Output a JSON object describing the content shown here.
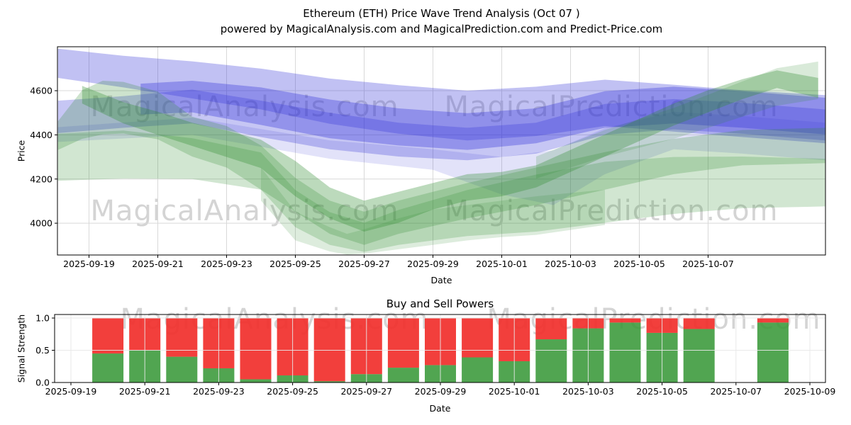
{
  "figure": {
    "title_line1": "Ethereum (ETH) Price Wave Trend Analysis (Oct 07 )",
    "title_line2": "powered by MagicalAnalysis.com and MagicalPrediction.com and Predict-Price.com",
    "watermark_left": "MagicalAnalysis.com",
    "watermark_right": "MagicalPrediction.com",
    "colors": {
      "band_blue": "#3232d8",
      "band_green": "#2e8b2e",
      "bar_buy_green": "#399939",
      "bar_sell_red": "#f12f2b",
      "grid": "#d9d9d9",
      "grid_over_bars": "#e8e8e8",
      "spine": "#000000",
      "watermark": "#a5a5a5"
    }
  },
  "chart_data": [
    {
      "type": "area",
      "title": "",
      "xlabel": "Date",
      "ylabel": "Price",
      "x_ticks": [
        "2025-09-19",
        "2025-09-21",
        "2025-09-23",
        "2025-09-25",
        "2025-09-27",
        "2025-09-29",
        "2025-10-01",
        "2025-10-03",
        "2025-10-05",
        "2025-10-07"
      ],
      "y_ticks": [
        4000,
        4200,
        4400,
        4600
      ],
      "ylim": [
        3856,
        4799
      ],
      "x_unit": "days since 2025-09-18",
      "xlim_days": [
        0.1,
        22.4
      ],
      "grid": true,
      "bands": {
        "blue": [
          {
            "name": "blue-wide-upper",
            "opacity": 0.3,
            "points": [
              [
                0.1,
                4790,
                4658
              ],
              [
                2,
                4758,
                4615
              ],
              [
                4,
                4733,
                4565
              ],
              [
                6,
                4700,
                4515
              ],
              [
                8,
                4655,
                4450
              ],
              [
                10,
                4625,
                4405
              ],
              [
                12,
                4600,
                4375
              ],
              [
                14,
                4618,
                4395
              ],
              [
                16,
                4650,
                4440
              ],
              [
                18,
                4627,
                4415
              ],
              [
                20,
                4602,
                4390
              ],
              [
                22.4,
                4580,
                4362
              ]
            ]
          },
          {
            "name": "blue-mid",
            "opacity": 0.28,
            "points": [
              [
                0.1,
                4555,
                4408
              ],
              [
                2,
                4575,
                4432
              ],
              [
                4,
                4605,
                4452
              ],
              [
                6,
                4555,
                4390
              ],
              [
                8,
                4500,
                4335
              ],
              [
                10,
                4455,
                4302
              ],
              [
                12,
                4432,
                4285
              ],
              [
                14,
                4455,
                4315
              ],
              [
                16,
                4540,
                4400
              ],
              [
                18,
                4562,
                4425
              ],
              [
                20,
                4545,
                4405
              ],
              [
                22.4,
                4515,
                4375
              ]
            ]
          },
          {
            "name": "blue-core-dark",
            "opacity": 0.34,
            "points": [
              [
                2.5,
                4632,
                4492
              ],
              [
                4,
                4645,
                4502
              ],
              [
                6,
                4615,
                4445
              ],
              [
                8,
                4560,
                4385
              ],
              [
                10,
                4520,
                4352
              ],
              [
                12,
                4498,
                4332
              ],
              [
                14,
                4520,
                4362
              ],
              [
                16,
                4598,
                4432
              ],
              [
                18,
                4618,
                4452
              ],
              [
                20,
                4598,
                4432
              ],
              [
                22.4,
                4568,
                4402
              ]
            ]
          },
          {
            "name": "blue-faint-lower",
            "opacity": 0.14,
            "points": [
              [
                0.1,
                4435,
                4368
              ],
              [
                4,
                4478,
                4400
              ],
              [
                8,
                4375,
                4292
              ],
              [
                11,
                4335,
                4242
              ],
              [
                13,
                4300,
                4130
              ],
              [
                14.5,
                4330,
                4082
              ],
              [
                16,
                4430,
                4222
              ],
              [
                18,
                4505,
                4335
              ],
              [
                20,
                4485,
                4315
              ],
              [
                22.4,
                4455,
                4285
              ]
            ]
          }
        ],
        "green": [
          {
            "name": "green-wide-fan",
            "opacity": 0.22,
            "points": [
              [
                0.1,
                4405,
                4192
              ],
              [
                2,
                4420,
                4202
              ],
              [
                4,
                4385,
                4200
              ],
              [
                6,
                4320,
                4152
              ],
              [
                7,
                4150,
                3982
              ],
              [
                8,
                4050,
                3902
              ],
              [
                9,
                4002,
                3870
              ],
              [
                10,
                4060,
                3902
              ],
              [
                12,
                4150,
                3942
              ],
              [
                14,
                4220,
                3962
              ],
              [
                16,
                4278,
                4002
              ],
              [
                18,
                4300,
                4042
              ],
              [
                20,
                4302,
                4068
              ],
              [
                22.4,
                4292,
                4076
              ]
            ]
          },
          {
            "name": "green-mid",
            "opacity": 0.24,
            "points": [
              [
                0.1,
                4462,
                4332
              ],
              [
                0.8,
                4602,
                4382
              ],
              [
                1.4,
                4645,
                4402
              ],
              [
                2,
                4640,
                4406
              ],
              [
                3,
                4596,
                4380
              ],
              [
                4,
                4482,
                4302
              ],
              [
                5,
                4440,
                4252
              ],
              [
                6,
                4352,
                4152
              ],
              [
                7,
                4205,
                4052
              ],
              [
                8,
                4102,
                3952
              ],
              [
                9,
                4052,
                3902
              ],
              [
                10,
                4102,
                3952
              ],
              [
                12,
                4182,
                4022
              ],
              [
                14,
                4252,
                4082
              ],
              [
                16,
                4322,
                4152
              ],
              [
                18,
                4382,
                4222
              ],
              [
                20,
                4422,
                4262
              ],
              [
                22.4,
                4432,
                4272
              ]
            ]
          },
          {
            "name": "green-core-dark",
            "opacity": 0.32,
            "points": [
              [
                0.8,
                4622,
                4542
              ],
              [
                2,
                4548,
                4452
              ],
              [
                3,
                4505,
                4400
              ],
              [
                4,
                4455,
                4350
              ],
              [
                5,
                4420,
                4300
              ],
              [
                6,
                4378,
                4250
              ],
              [
                7,
                4282,
                4122
              ],
              [
                8,
                4162,
                4022
              ],
              [
                9,
                4102,
                3962
              ],
              [
                10,
                4142,
                4002
              ],
              [
                11,
                4182,
                4062
              ],
              [
                12,
                4222,
                4102
              ],
              [
                13,
                4232,
                4122
              ],
              [
                14,
                4262,
                4162
              ],
              [
                15,
                4332,
                4232
              ],
              [
                16,
                4402,
                4302
              ],
              [
                17,
                4472,
                4372
              ],
              [
                18,
                4542,
                4442
              ],
              [
                19,
                4602,
                4502
              ],
              [
                20,
                4652,
                4562
              ],
              [
                21,
                4692,
                4612
              ],
              [
                22.2,
                4658,
                4568
              ]
            ]
          },
          {
            "name": "green-upper-right-fan",
            "opacity": 0.18,
            "points": [
              [
                14,
                4302,
                4202
              ],
              [
                16,
                4422,
                4302
              ],
              [
                18,
                4522,
                4382
              ],
              [
                19,
                4582,
                4432
              ],
              [
                20,
                4642,
                4482
              ],
              [
                21,
                4702,
                4532
              ],
              [
                22.2,
                4732,
                4562
              ]
            ]
          },
          {
            "name": "green-trough-fan",
            "opacity": 0.16,
            "points": [
              [
                6,
                4252,
                4102
              ],
              [
                7,
                4052,
                3922
              ],
              [
                8,
                3982,
                3872
              ],
              [
                8.5,
                3952,
                3858
              ],
              [
                9,
                3972,
                3862
              ],
              [
                10,
                4022,
                3882
              ],
              [
                11,
                4062,
                3902
              ],
              [
                12,
                4082,
                3922
              ],
              [
                13,
                4102,
                3937
              ],
              [
                14,
                4122,
                3947
              ],
              [
                16,
                4152,
                3992
              ]
            ]
          }
        ]
      }
    },
    {
      "type": "bar",
      "stacked": true,
      "title": "Buy and Sell Powers",
      "xlabel": "Date",
      "ylabel": "Signal Strength",
      "x_ticks": [
        "2025-09-19",
        "2025-09-21",
        "2025-09-23",
        "2025-09-25",
        "2025-09-27",
        "2025-09-29",
        "2025-10-01",
        "2025-10-03",
        "2025-10-05",
        "2025-10-07",
        "2025-10-09"
      ],
      "y_ticks": [
        "0.0",
        "0.5",
        "1.0"
      ],
      "ylim": [
        0,
        1.05
      ],
      "grid": true,
      "series_names": [
        "buy_power_green",
        "sell_power_red"
      ],
      "bars": [
        {
          "date": "2025-09-20",
          "buy": 0.45,
          "sell": 0.55
        },
        {
          "date": "2025-09-21",
          "buy": 0.5,
          "sell": 0.5
        },
        {
          "date": "2025-09-22",
          "buy": 0.4,
          "sell": 0.6
        },
        {
          "date": "2025-09-23",
          "buy": 0.22,
          "sell": 0.78
        },
        {
          "date": "2025-09-24",
          "buy": 0.05,
          "sell": 0.95
        },
        {
          "date": "2025-09-25",
          "buy": 0.11,
          "sell": 0.89
        },
        {
          "date": "2025-09-26",
          "buy": 0.02,
          "sell": 0.98
        },
        {
          "date": "2025-09-27",
          "buy": 0.13,
          "sell": 0.87
        },
        {
          "date": "2025-09-28",
          "buy": 0.23,
          "sell": 0.77
        },
        {
          "date": "2025-09-29",
          "buy": 0.27,
          "sell": 0.73
        },
        {
          "date": "2025-09-30",
          "buy": 0.39,
          "sell": 0.61
        },
        {
          "date": "2025-10-01",
          "buy": 0.33,
          "sell": 0.67
        },
        {
          "date": "2025-10-02",
          "buy": 0.67,
          "sell": 0.33
        },
        {
          "date": "2025-10-03",
          "buy": 0.84,
          "sell": 0.16
        },
        {
          "date": "2025-10-04",
          "buy": 0.93,
          "sell": 0.07
        },
        {
          "date": "2025-10-05",
          "buy": 0.77,
          "sell": 0.23
        },
        {
          "date": "2025-10-06",
          "buy": 0.83,
          "sell": 0.17
        },
        {
          "date": "2025-10-08",
          "buy": 0.93,
          "sell": 0.07
        }
      ]
    }
  ]
}
